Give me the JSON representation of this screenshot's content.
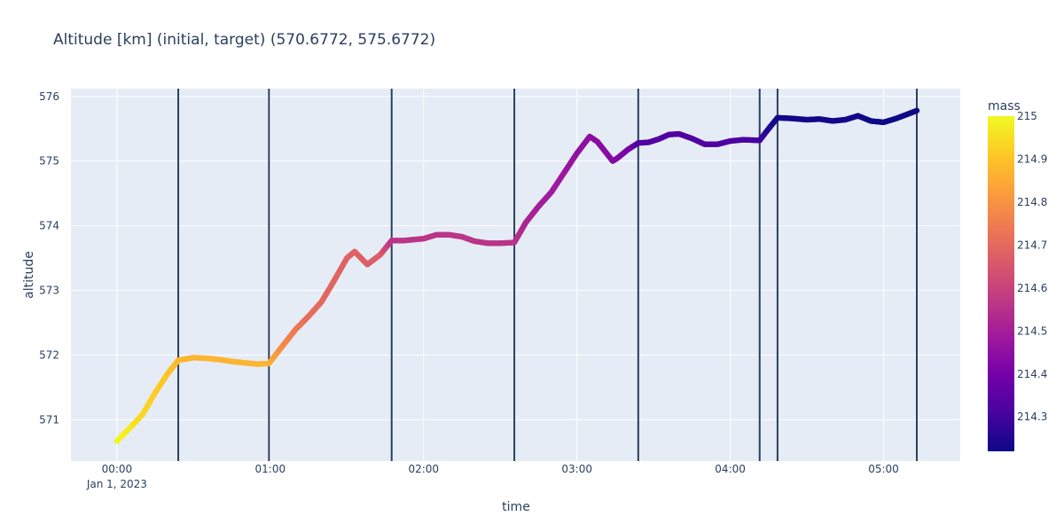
{
  "chart_data": {
    "type": "scatter",
    "title": "Altitude [km] (initial, target) (570.6772, 575.6772)",
    "xlabel": "time",
    "ylabel": "altitude",
    "x_unit": "minutes after 2023-01-01 00:00",
    "xlim": [
      -18,
      330
    ],
    "ylim": [
      570.36,
      576.12
    ],
    "x_ticks": [
      {
        "value": 0,
        "label": "00:00",
        "sublabel": "Jan 1, 2023"
      },
      {
        "value": 60,
        "label": "01:00",
        "sublabel": ""
      },
      {
        "value": 120,
        "label": "02:00",
        "sublabel": ""
      },
      {
        "value": 180,
        "label": "03:00",
        "sublabel": ""
      },
      {
        "value": 240,
        "label": "04:00",
        "sublabel": ""
      },
      {
        "value": 300,
        "label": "05:00",
        "sublabel": ""
      }
    ],
    "y_ticks": [
      571,
      572,
      573,
      574,
      575,
      576
    ],
    "grid": true,
    "colorbar": {
      "title": "mass",
      "min": 214.22,
      "max": 215.0,
      "ticks": [
        215,
        214.9,
        214.8,
        214.7,
        214.6,
        214.5,
        214.4,
        214.3
      ],
      "colorscale": [
        "#0d0887",
        "#46039f",
        "#7201a8",
        "#9c179e",
        "#bd3786",
        "#d8576b",
        "#ed7953",
        "#fb9f3a",
        "#fdca26",
        "#f0f921"
      ]
    },
    "vertical_lines_x": [
      24,
      59.5,
      107.5,
      155.5,
      204,
      251.5,
      258.5,
      313
    ],
    "vertical_line_color": "#2a3f5f",
    "x": [
      0,
      5,
      10,
      15,
      20,
      24,
      30,
      35,
      40,
      45,
      50,
      55,
      59.5,
      65,
      70,
      75,
      80,
      85,
      90,
      93,
      98,
      103,
      107.5,
      112,
      120,
      125,
      130,
      135,
      140,
      145,
      150,
      155.5,
      160,
      165,
      170,
      175,
      180,
      185,
      188,
      191,
      194,
      196,
      200,
      204,
      208,
      212,
      216,
      220,
      225,
      230,
      235,
      240,
      245,
      251.5,
      255,
      258.5,
      264,
      270,
      275,
      280,
      285,
      290,
      295,
      300,
      305,
      313
    ],
    "y": [
      570.67,
      570.87,
      571.08,
      571.42,
      571.72,
      571.92,
      571.96,
      571.95,
      571.93,
      571.9,
      571.88,
      571.86,
      571.87,
      572.15,
      572.4,
      572.6,
      572.82,
      573.15,
      573.5,
      573.6,
      573.4,
      573.55,
      573.77,
      573.77,
      573.8,
      573.86,
      573.86,
      573.83,
      573.76,
      573.73,
      573.73,
      573.74,
      574.05,
      574.3,
      574.52,
      574.82,
      575.12,
      575.38,
      575.3,
      575.15,
      575.0,
      575.05,
      575.18,
      575.28,
      575.29,
      575.34,
      575.41,
      575.42,
      575.35,
      575.26,
      575.26,
      575.31,
      575.33,
      575.32,
      575.5,
      575.67,
      575.66,
      575.64,
      575.65,
      575.62,
      575.64,
      575.7,
      575.62,
      575.6,
      575.66,
      575.78
    ],
    "mass": [
      215.0,
      214.97,
      214.94,
      214.92,
      214.9,
      214.88,
      214.87,
      214.87,
      214.87,
      214.87,
      214.87,
      214.87,
      214.87,
      214.78,
      214.74,
      214.71,
      214.7,
      214.69,
      214.68,
      214.68,
      214.67,
      214.67,
      214.56,
      214.56,
      214.56,
      214.56,
      214.56,
      214.56,
      214.56,
      214.56,
      214.56,
      214.56,
      214.52,
      214.5,
      214.49,
      214.48,
      214.46,
      214.45,
      214.44,
      214.44,
      214.43,
      214.42,
      214.41,
      214.33,
      214.33,
      214.33,
      214.33,
      214.33,
      214.33,
      214.33,
      214.33,
      214.33,
      214.32,
      214.31,
      214.25,
      214.23,
      214.23,
      214.23,
      214.23,
      214.23,
      214.23,
      214.23,
      214.22,
      214.22,
      214.22,
      214.22
    ]
  }
}
